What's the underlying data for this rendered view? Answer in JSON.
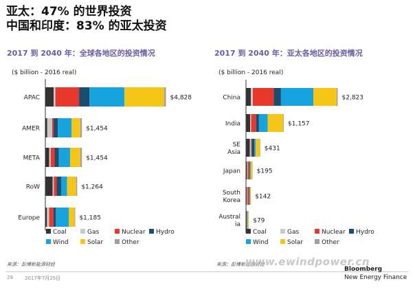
{
  "header": {
    "line1": "亚太：47% 的世界投资",
    "line2": "中国和印度：83% 的亚太投资"
  },
  "chart_data": [
    {
      "type": "bar",
      "orientation": "horizontal",
      "stacked": true,
      "title": "2017 到 2040 年：全球各地区的投资情况",
      "unit_label": "($ billion - 2016 real)",
      "categories": [
        "APAC",
        "AMER",
        "META",
        "RoW",
        "Europe"
      ],
      "value_labels": [
        "$4,828",
        "$1,454",
        "$1,454",
        "$1,264",
        "$1,185"
      ],
      "totals": [
        4828,
        1454,
        1454,
        1264,
        1185
      ],
      "series": [
        {
          "name": "Coal",
          "color": "#333333",
          "values": [
            320,
            60,
            140,
            280,
            50
          ]
        },
        {
          "name": "Gas",
          "color": "#c9c9c9",
          "values": [
            70,
            200,
            60,
            50,
            90
          ]
        },
        {
          "name": "Nuclear",
          "color": "#e8372d",
          "values": [
            950,
            60,
            160,
            110,
            170
          ]
        },
        {
          "name": "Hydro",
          "color": "#1a4d6e",
          "values": [
            420,
            170,
            170,
            180,
            100
          ]
        },
        {
          "name": "Wind",
          "color": "#17a3dd",
          "values": [
            1400,
            550,
            450,
            240,
            520
          ]
        },
        {
          "name": "Solar",
          "color": "#f5c518",
          "values": [
            1600,
            350,
            410,
            360,
            230
          ]
        },
        {
          "name": "Other",
          "color": "#9e9e9e",
          "values": [
            68,
            64,
            64,
            44,
            25
          ]
        }
      ],
      "legend": "bottom"
    },
    {
      "type": "bar",
      "orientation": "horizontal",
      "stacked": true,
      "title": "2017 到 2040 年：亚太各地区的投资情况",
      "unit_label": "($ billion - 2016 real)",
      "categories": [
        "China",
        "India",
        "SE Asia",
        "Japan",
        "South Korea",
        "Australia"
      ],
      "category_lines": [
        [
          "China"
        ],
        [
          "India"
        ],
        [
          "SE",
          "Asia"
        ],
        [
          "Japan"
        ],
        [
          "South",
          "Korea"
        ],
        [
          "Austral",
          "ia"
        ]
      ],
      "value_labels": [
        "$2,823",
        "$1,157",
        "$431",
        "$195",
        "$142",
        "$79"
      ],
      "totals": [
        2823,
        1157,
        431,
        195,
        142,
        79
      ],
      "series": [
        {
          "name": "Coal",
          "color": "#333333",
          "values": [
            140,
            120,
            110,
            20,
            15,
            10
          ]
        },
        {
          "name": "Gas",
          "color": "#c9c9c9",
          "values": [
            60,
            30,
            40,
            25,
            20,
            8
          ]
        },
        {
          "name": "Nuclear",
          "color": "#e8372d",
          "values": [
            650,
            150,
            20,
            50,
            55,
            0
          ]
        },
        {
          "name": "Hydro",
          "color": "#1a4d6e",
          "values": [
            220,
            90,
            80,
            10,
            5,
            4
          ]
        },
        {
          "name": "Wind",
          "color": "#17a3dd",
          "values": [
            1000,
            270,
            40,
            30,
            20,
            22
          ]
        },
        {
          "name": "Solar",
          "color": "#f5c518",
          "values": [
            720,
            480,
            130,
            55,
            25,
            33
          ]
        },
        {
          "name": "Other",
          "color": "#9e9e9e",
          "values": [
            33,
            17,
            11,
            5,
            2,
            2
          ]
        }
      ],
      "legend": "bottom"
    }
  ],
  "footer": {
    "source_left": "来源：彭博新能源财经",
    "source_right": "来源：彭博新能源财经",
    "page_number": "29",
    "date": "2017年7月25日",
    "watermark": "www.ewindpower.cn",
    "brand_line1": "Bloomberg",
    "brand_line2": "New Energy Finance"
  }
}
